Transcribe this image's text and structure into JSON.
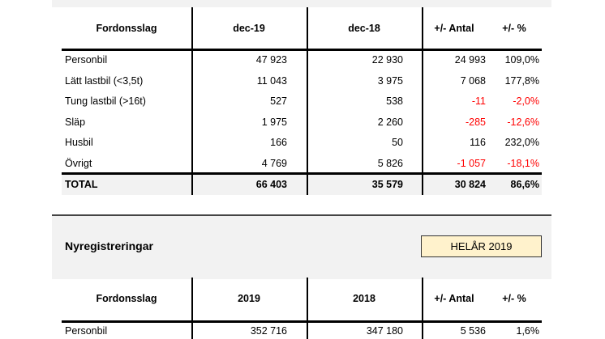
{
  "table1": {
    "headers": [
      "Fordonsslag",
      "dec-19",
      "dec-18",
      "+/- Antal",
      "+/- %"
    ],
    "rows": [
      {
        "name": "Personbil",
        "a": "47 923",
        "b": "22 930",
        "diff": "24 993",
        "pct": "109,0%",
        "negative": false
      },
      {
        "name": "Lätt lastbil (<3,5t)",
        "a": "11 043",
        "b": "3 975",
        "diff": "7 068",
        "pct": "177,8%",
        "negative": false
      },
      {
        "name": "Tung lastbil (>16t)",
        "a": "527",
        "b": "538",
        "diff": "-11",
        "pct": "-2,0%",
        "negative": true
      },
      {
        "name": "Släp",
        "a": "1 975",
        "b": "2 260",
        "diff": "-285",
        "pct": "-12,6%",
        "negative": true
      },
      {
        "name": "Husbil",
        "a": "166",
        "b": "50",
        "diff": "116",
        "pct": "232,0%",
        "negative": false
      },
      {
        "name": "Övrigt",
        "a": "4 769",
        "b": "5 826",
        "diff": "-1 057",
        "pct": "-18,1%",
        "negative": true
      }
    ],
    "total": {
      "name": "TOTAL",
      "a": "66 403",
      "b": "35 579",
      "diff": "30 824",
      "pct": "86,6%"
    }
  },
  "section2": {
    "title": "Nyregistreringar",
    "period_badge": "HELÅR 2019",
    "badge_color": "#fff2cc",
    "headers": [
      "Fordonsslag",
      "2019",
      "2018",
      "+/- Antal",
      "+/- %"
    ],
    "rows": [
      {
        "name": "Personbil",
        "a": "352 716",
        "b": "347 180",
        "diff": "5 536",
        "pct": "1,6%",
        "negative": false
      }
    ]
  },
  "colors": {
    "negative": "#ff0000",
    "band": "#f2f2f2"
  }
}
